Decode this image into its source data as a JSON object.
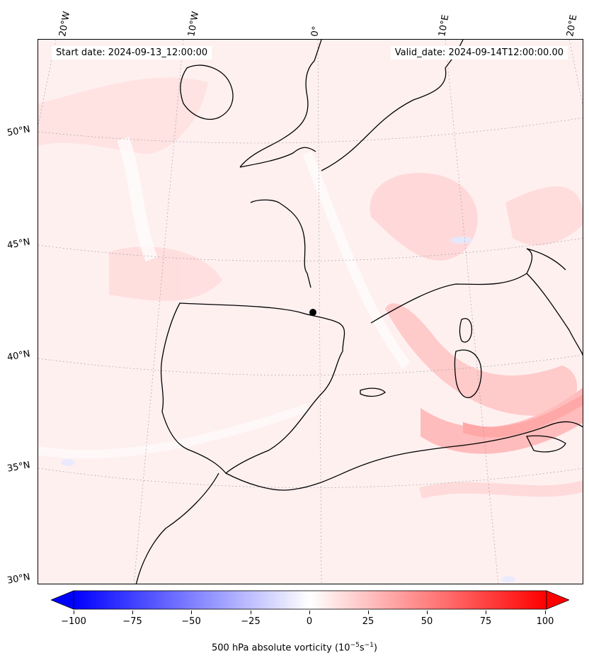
{
  "header": {
    "start_date": "Start date: 2024-09-13_12:00:00",
    "valid_date": "Valid_date: 2024-09-14T12:00:00.00"
  },
  "map": {
    "longitude_labels": [
      "20°W",
      "10°W",
      "0°",
      "10°E",
      "20°E"
    ],
    "latitude_labels": [
      "50°N",
      "45°N",
      "40°N",
      "35°N",
      "30°N"
    ],
    "field": "500 hPa absolute vorticity"
  },
  "colorbar": {
    "ticks": [
      "−100",
      "−75",
      "−50",
      "−25",
      "0",
      "25",
      "50",
      "75",
      "100"
    ],
    "min": -100,
    "max": 100,
    "label_main": "500 hPa absolute vorticity (10",
    "label_exp1": "−5",
    "label_mid": "s",
    "label_exp2": "−1",
    "label_end": ")",
    "low_color": "#0000ff",
    "mid_color": "#ffffff",
    "high_color": "#ff0000"
  }
}
